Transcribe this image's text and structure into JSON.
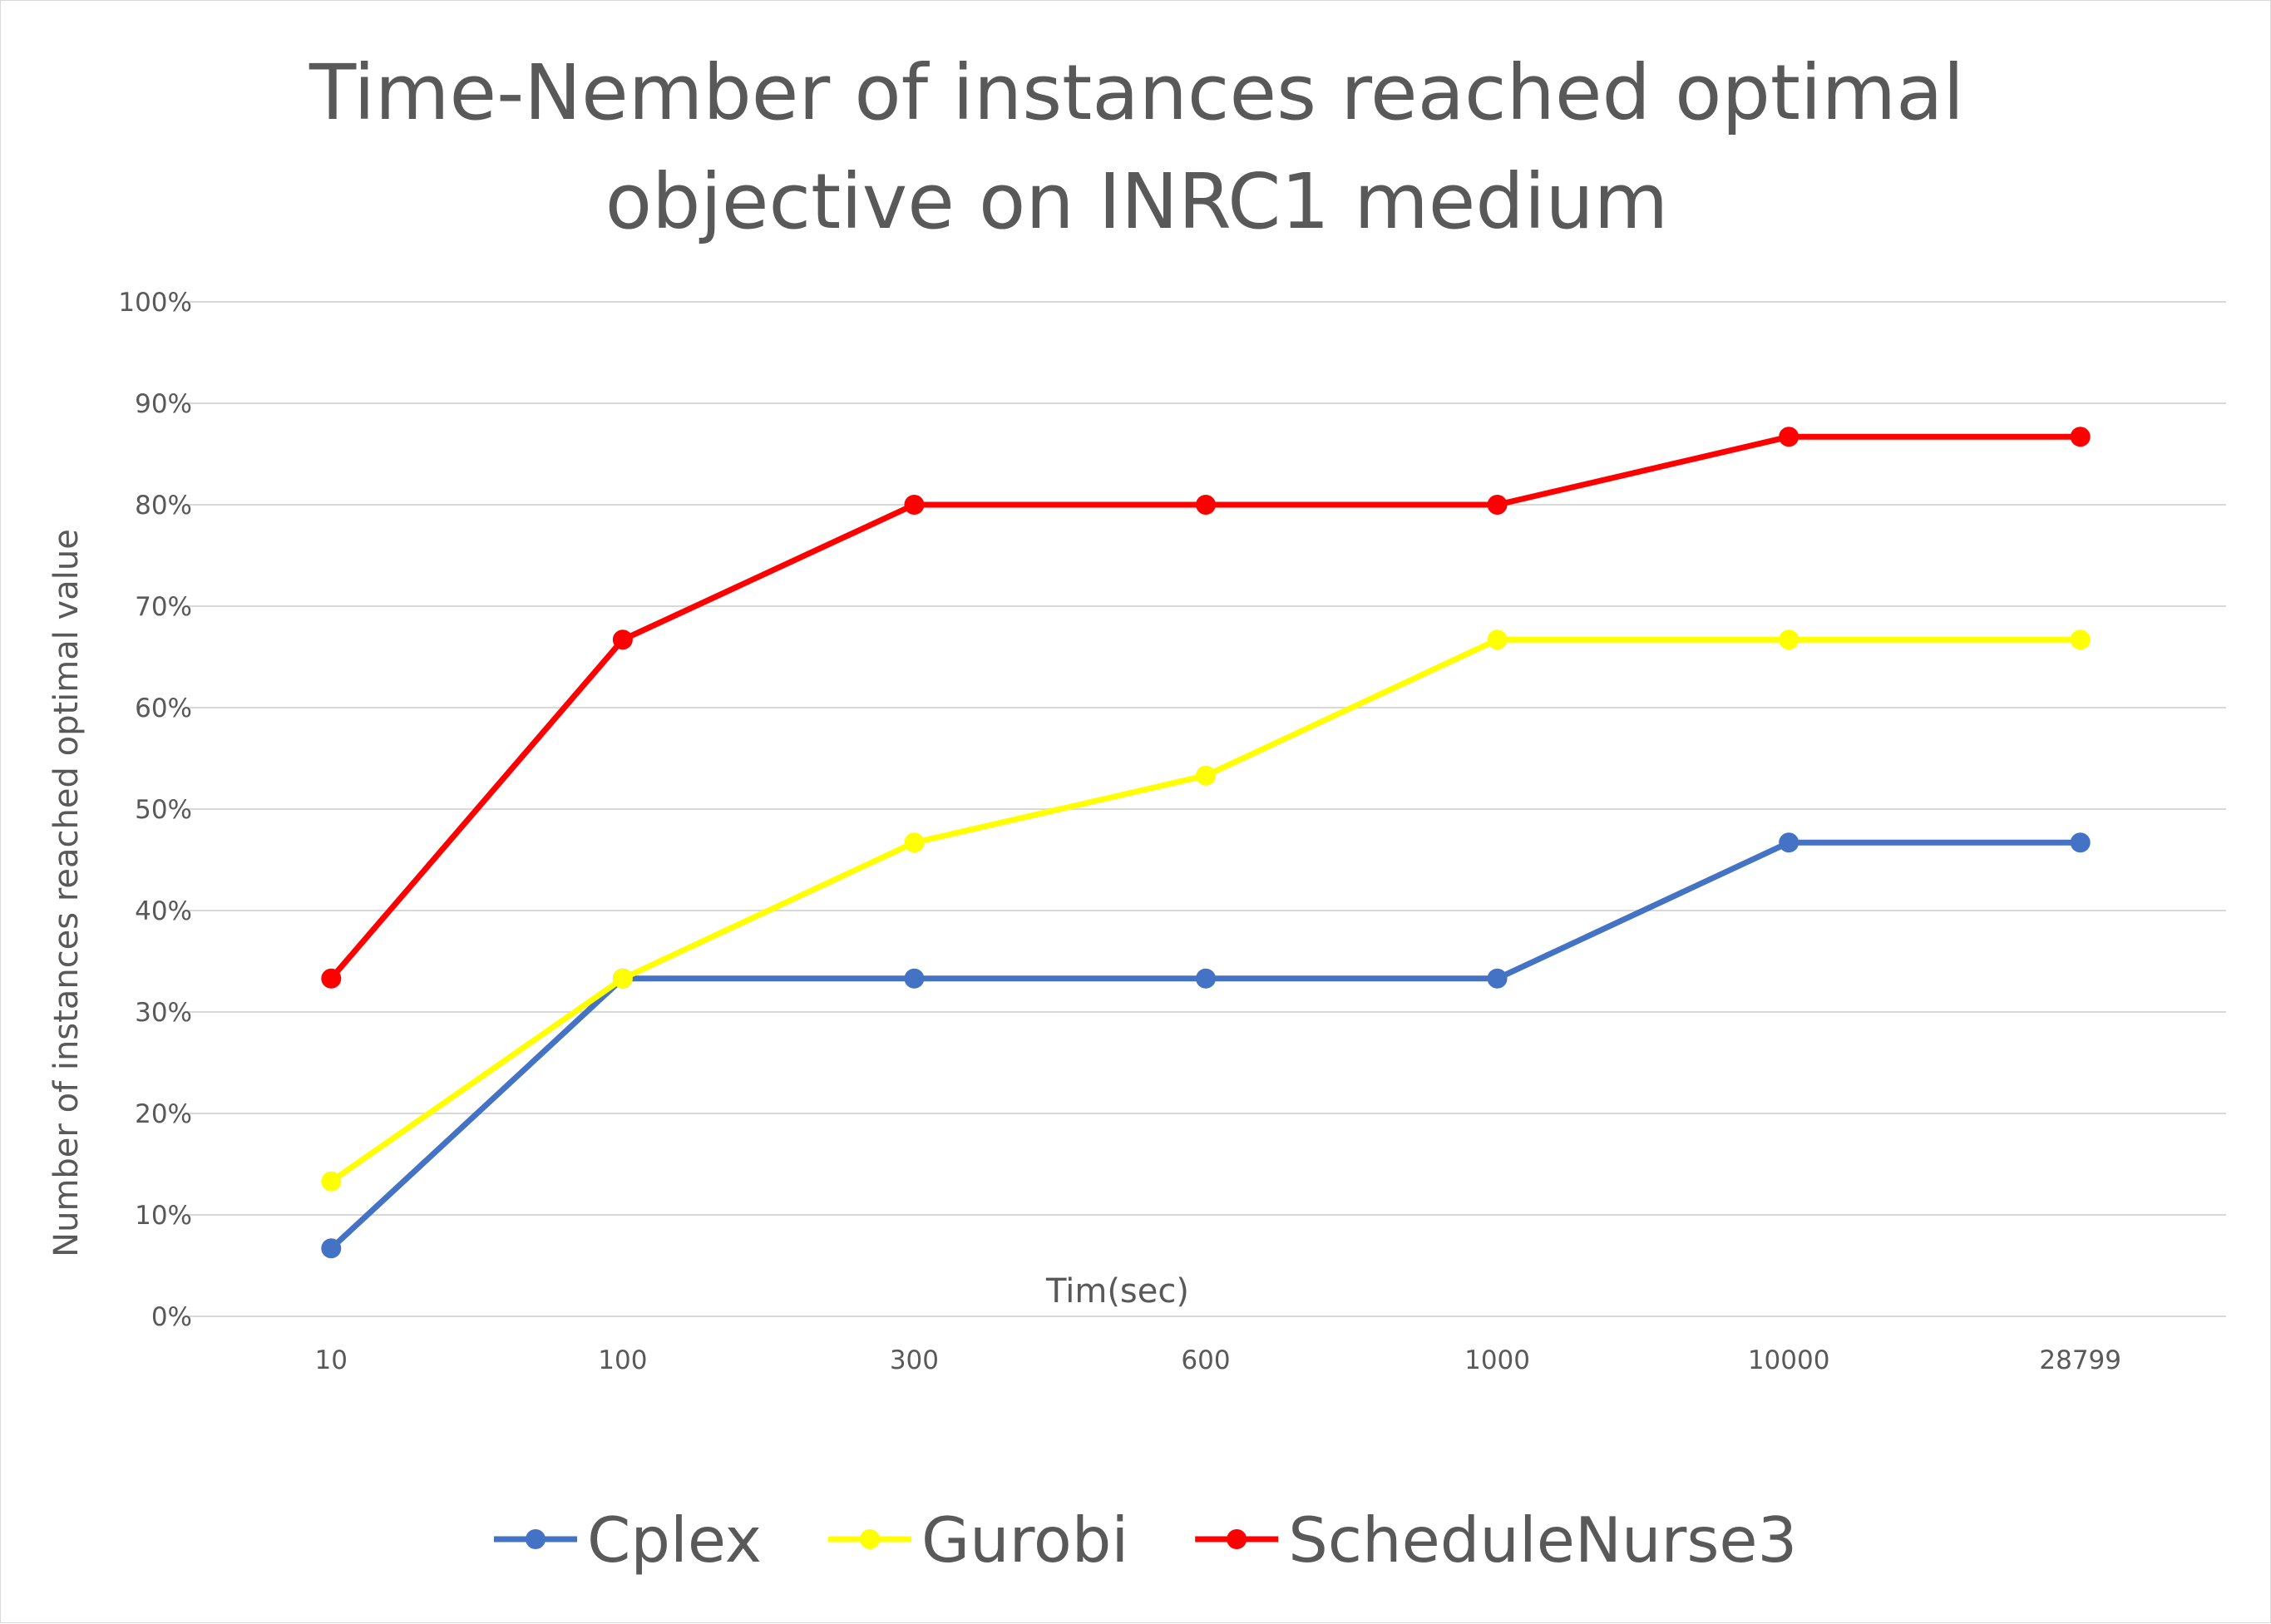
{
  "chart_data": {
    "type": "line",
    "title_lines": [
      "Time-Nember of instances reached optimal",
      "objective on INRC1 medium"
    ],
    "xlabel": "Tim(sec)",
    "ylabel": "Number of instances reached optimal value",
    "categories": [
      "10",
      "100",
      "300",
      "600",
      "1000",
      "10000",
      "28799"
    ],
    "y_ticks": [
      "0%",
      "10%",
      "20%",
      "30%",
      "40%",
      "50%",
      "60%",
      "70%",
      "80%",
      "90%",
      "100%"
    ],
    "ylim": [
      0,
      100
    ],
    "y_unit": "%",
    "grid": true,
    "legend_position": "bottom",
    "series": [
      {
        "name": "Cplex",
        "color": "#4472c4",
        "values": [
          6.7,
          33.3,
          33.3,
          33.3,
          33.3,
          46.7,
          46.7
        ]
      },
      {
        "name": "Gurobi",
        "color": "#ffff00",
        "values": [
          13.3,
          33.3,
          46.7,
          53.3,
          66.7,
          66.7,
          66.7
        ]
      },
      {
        "name": "ScheduleNurse3",
        "color": "#ff0000",
        "values": [
          33.3,
          66.7,
          80.0,
          80.0,
          80.0,
          86.7,
          86.7
        ]
      }
    ]
  }
}
